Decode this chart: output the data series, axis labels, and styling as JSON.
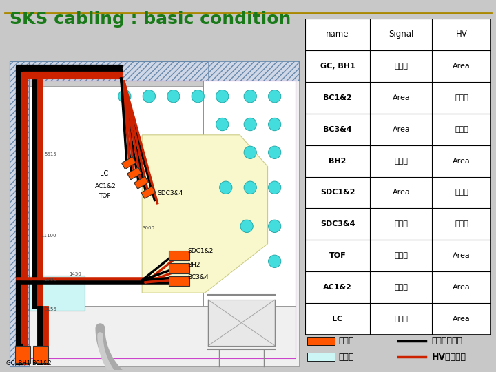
{
  "title": "SKS cabling : basic condition",
  "title_color": "#1a7a1a",
  "title_fontsize": 18,
  "bg_color": "#c8c8c8",
  "map_white_bg": "#ffffff",
  "table": {
    "headers": [
      "name",
      "Signal",
      "HV"
    ],
    "rows": [
      [
        "GC, BH1",
        "計測室",
        "Area"
      ],
      [
        "BC1&2",
        "Area",
        "計測室"
      ],
      [
        "BC3&4",
        "Area",
        "計測室"
      ],
      [
        "BH2",
        "計測室",
        "Area"
      ],
      [
        "SDC1&2",
        "Area",
        "計測室"
      ],
      [
        "SDC3&4",
        "計測室",
        "計測室"
      ],
      [
        "TOF",
        "計測室",
        "Area"
      ],
      [
        "AC1&2",
        "計測室",
        "Area"
      ],
      [
        "LC",
        "計測室",
        "Area"
      ]
    ]
  },
  "legend": {
    "detector_color": "#ff5500",
    "rack_color": "#ccf5f5",
    "signal_color": "#000000",
    "hv_color": "#cc2200",
    "detector_label": "検出器",
    "rack_label": "ラック",
    "signal_label": "信号ケーブル",
    "hv_label": "HVケーブル"
  }
}
